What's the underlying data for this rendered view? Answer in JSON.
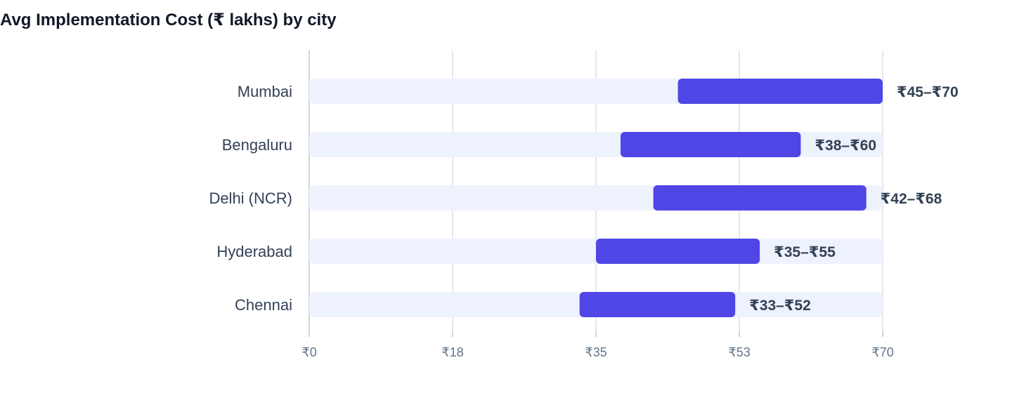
{
  "chart_data": {
    "type": "bar",
    "subtype": "range",
    "title": "Avg Implementation Cost (₹ lakhs) by city",
    "xlabel": "",
    "ylabel": "",
    "categories": [
      "Mumbai",
      "Bengaluru",
      "Delhi (NCR)",
      "Hyderabad",
      "Chennai"
    ],
    "series": [
      {
        "ranges": [
          [
            45,
            70
          ],
          [
            38,
            60
          ],
          [
            42,
            68
          ],
          [
            35,
            55
          ],
          [
            33,
            52
          ]
        ],
        "labels": [
          "₹45–₹70",
          "₹38–₹60",
          "₹42–₹68",
          "₹35–₹55",
          "₹33–₹52"
        ]
      }
    ],
    "xlim": [
      0,
      70
    ],
    "xticks": [
      0,
      17.5,
      35,
      52.5,
      70
    ],
    "xtick_labels": [
      "₹0",
      "₹18",
      "₹35",
      "₹53",
      "₹70"
    ],
    "grid": true,
    "colors": {
      "range": "#4f46e5",
      "track": "#eef2fd",
      "grid": "#e5e7eb",
      "axis": "#d1d5db"
    }
  }
}
